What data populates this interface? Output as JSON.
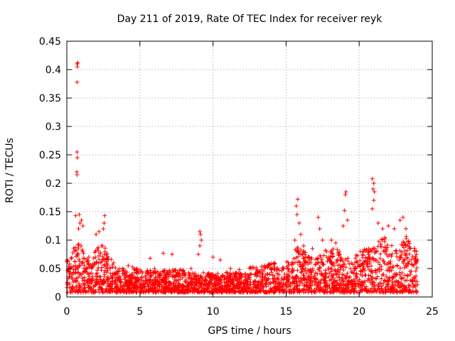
{
  "chart_data": {
    "type": "scatter",
    "title": "Day 211 of 2019, Rate Of TEC Index for receiver reyk",
    "xlabel": "GPS time / hours",
    "ylabel": "ROTI / TECUs",
    "xlim": [
      0,
      25
    ],
    "ylim": [
      0,
      0.45
    ],
    "xticks": [
      0,
      5,
      10,
      15,
      20,
      25
    ],
    "xtick_labels": [
      "0",
      "5",
      "10",
      "15",
      "20",
      "25"
    ],
    "yticks": [
      0,
      0.05,
      0.1,
      0.15,
      0.2,
      0.25,
      0.3,
      0.35,
      0.4,
      0.45
    ],
    "ytick_labels": [
      "0",
      "0.05",
      "0.1",
      "0.15",
      "0.2",
      "0.25",
      "0.3",
      "0.35",
      "0.4",
      "0.45"
    ],
    "grid": true,
    "marker": "+",
    "marker_color": "#ff0000",
    "series": [
      {
        "name": "ROTI",
        "points": [
          [
            0.7,
            0.41
          ],
          [
            0.75,
            0.412
          ],
          [
            0.72,
            0.405
          ],
          [
            0.7,
            0.378
          ],
          [
            0.7,
            0.255
          ],
          [
            0.72,
            0.245
          ],
          [
            0.68,
            0.22
          ],
          [
            0.7,
            0.215
          ],
          [
            0.6,
            0.143
          ],
          [
            0.85,
            0.145
          ],
          [
            0.9,
            0.13
          ],
          [
            1.0,
            0.135
          ],
          [
            1.1,
            0.125
          ],
          [
            0.8,
            0.12
          ],
          [
            2.6,
            0.143
          ],
          [
            2.55,
            0.13
          ],
          [
            2.5,
            0.12
          ],
          [
            2.2,
            0.115
          ],
          [
            2.0,
            0.11
          ],
          [
            9.1,
            0.115
          ],
          [
            9.15,
            0.11
          ],
          [
            9.2,
            0.1
          ],
          [
            9.1,
            0.09
          ],
          [
            9.0,
            0.075
          ],
          [
            6.6,
            0.077
          ],
          [
            7.2,
            0.075
          ],
          [
            10.0,
            0.07
          ],
          [
            10.5,
            0.065
          ],
          [
            5.7,
            0.068
          ],
          [
            15.8,
            0.172
          ],
          [
            15.7,
            0.16
          ],
          [
            15.75,
            0.145
          ],
          [
            15.9,
            0.13
          ],
          [
            16.0,
            0.11
          ],
          [
            15.6,
            0.1
          ],
          [
            17.2,
            0.14
          ],
          [
            17.3,
            0.12
          ],
          [
            17.5,
            0.1
          ],
          [
            16.8,
            0.085
          ],
          [
            16.2,
            0.09
          ],
          [
            18.1,
            0.1
          ],
          [
            18.4,
            0.095
          ],
          [
            18.9,
            0.125
          ],
          [
            19.0,
            0.152
          ],
          [
            19.1,
            0.185
          ],
          [
            19.05,
            0.18
          ],
          [
            19.2,
            0.135
          ],
          [
            20.9,
            0.208
          ],
          [
            21.0,
            0.2
          ],
          [
            20.95,
            0.19
          ],
          [
            21.05,
            0.185
          ],
          [
            21.0,
            0.17
          ],
          [
            20.9,
            0.155
          ],
          [
            21.3,
            0.13
          ],
          [
            21.6,
            0.12
          ],
          [
            22.0,
            0.125
          ],
          [
            22.4,
            0.12
          ],
          [
            22.8,
            0.135
          ],
          [
            23.0,
            0.14
          ],
          [
            23.2,
            0.12
          ],
          [
            23.5,
            0.085
          ],
          [
            23.8,
            0.08
          ],
          [
            12.5,
            0.05
          ],
          [
            13.0,
            0.045
          ],
          [
            13.8,
            0.058
          ],
          [
            14.2,
            0.06
          ],
          [
            1.5,
            0.07
          ],
          [
            3.2,
            0.06
          ],
          [
            4.2,
            0.055
          ],
          [
            4.8,
            0.05
          ],
          [
            6.0,
            0.05
          ],
          [
            7.8,
            0.048
          ],
          [
            8.5,
            0.05
          ],
          [
            11.2,
            0.05
          ],
          [
            11.8,
            0.048
          ]
        ]
      }
    ]
  }
}
